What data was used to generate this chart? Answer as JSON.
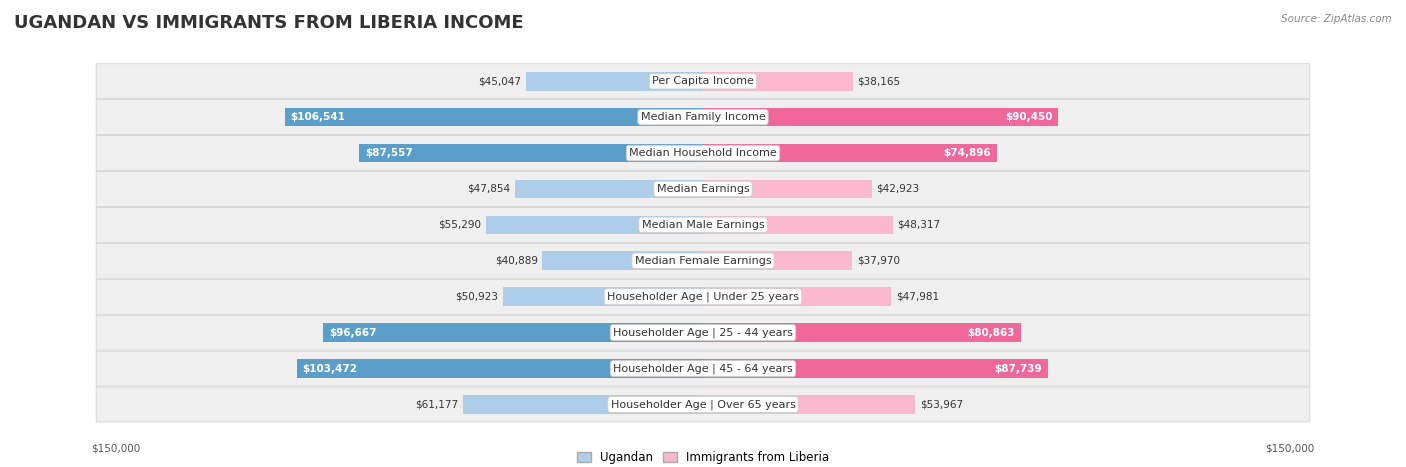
{
  "title": "UGANDAN VS IMMIGRANTS FROM LIBERIA INCOME",
  "source": "Source: ZipAtlas.com",
  "categories": [
    "Per Capita Income",
    "Median Family Income",
    "Median Household Income",
    "Median Earnings",
    "Median Male Earnings",
    "Median Female Earnings",
    "Householder Age | Under 25 years",
    "Householder Age | 25 - 44 years",
    "Householder Age | 45 - 64 years",
    "Householder Age | Over 65 years"
  ],
  "ugandan": [
    45047,
    106541,
    87557,
    47854,
    55290,
    40889,
    50923,
    96667,
    103472,
    61177
  ],
  "liberia": [
    38165,
    90450,
    74896,
    42923,
    48317,
    37970,
    47981,
    80863,
    87739,
    53967
  ],
  "max_val": 150000,
  "blue_light": "#aecde8",
  "blue_dark": "#5b9ec9",
  "pink_light": "#f9b8cd",
  "pink_dark": "#f0679a",
  "inside_threshold": 65000,
  "bar_height": 0.52,
  "row_bg": "#efefef",
  "title_fontsize": 13,
  "label_fontsize": 8,
  "value_fontsize": 7.5,
  "legend_fontsize": 8.5,
  "source_fontsize": 7.5
}
